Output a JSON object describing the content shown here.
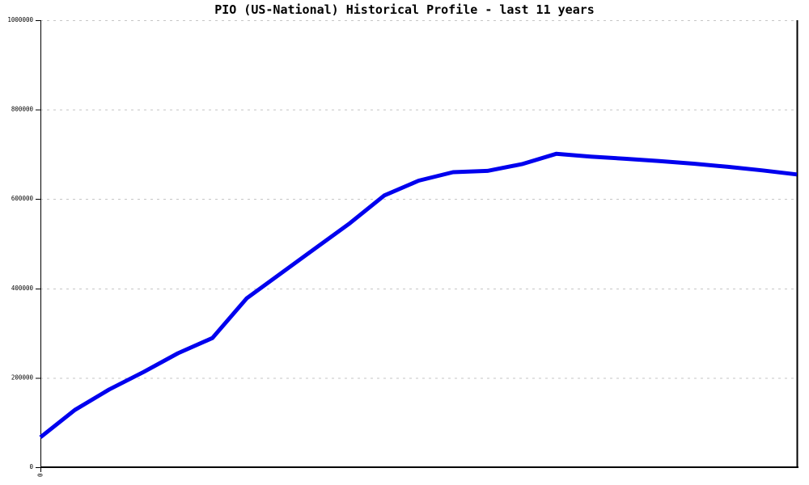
{
  "title": "PIO (US-National) Historical Profile - last 11 years",
  "chart_data": {
    "type": "line",
    "title": "PIO (US-National) Historical Profile - last 11 years",
    "x_span_years": 11,
    "n_points": 23,
    "values": [
      67000,
      128000,
      174000,
      213000,
      255000,
      289000,
      378000,
      434000,
      490000,
      546000,
      608000,
      641000,
      660000,
      663000,
      678000,
      701000,
      695000,
      690000,
      685000,
      679000,
      672000,
      664000,
      655000
    ],
    "ylim": [
      0,
      1000000
    ],
    "yticks": [
      0,
      200000,
      400000,
      600000,
      800000,
      1000000
    ],
    "ytick_labels": [
      "0",
      "200000",
      "400000",
      "600000",
      "800000",
      "1000000"
    ],
    "x_first_tick_label": "0",
    "grid": "horizontal-dashed",
    "legend": "none",
    "line_color": "#0000ee",
    "grid_color": "#c6c6c6",
    "axis_color": "#000000",
    "title_color": "#000000"
  }
}
